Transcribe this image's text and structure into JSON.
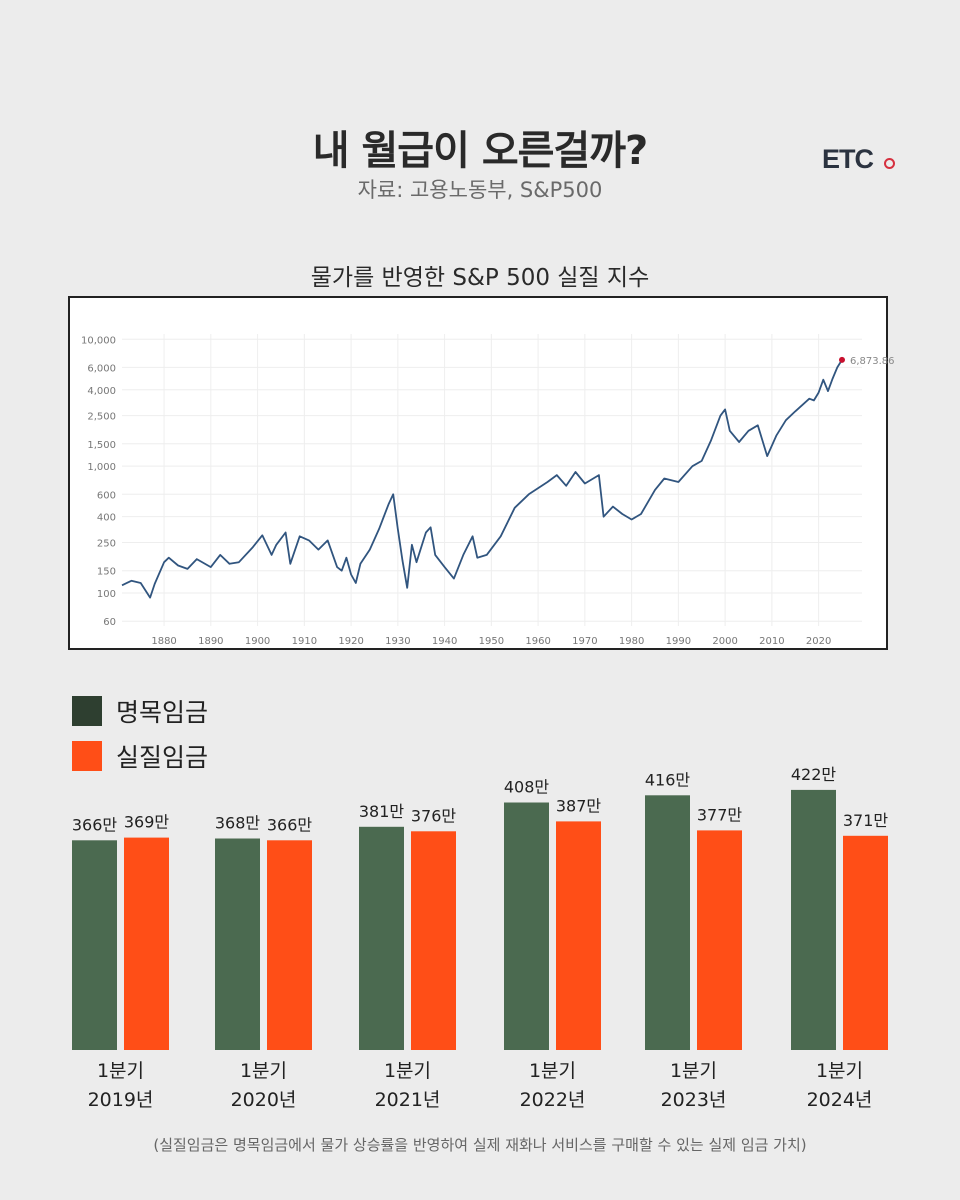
{
  "header": {
    "title": "내 월급이 오른걸까?",
    "source": "자료: 고용노동부, S&P500",
    "brand": "ETC"
  },
  "colors": {
    "nominal": "#4b6a50",
    "real": "#ff4e17",
    "legend_nominal": "#2e3f30",
    "line": "#31557f",
    "marker": "#c8102e"
  },
  "chart_data": [
    {
      "type": "line",
      "title": "물가를 반영한 S&P 500 실질 지수",
      "yscale": "log",
      "ylim": [
        55,
        11000
      ],
      "xlim": [
        1871,
        2025
      ],
      "yticks": [
        60,
        100,
        150,
        250,
        400,
        600,
        1000,
        1500,
        2500,
        4000,
        6000,
        10000
      ],
      "ytick_labels": [
        "60",
        "100",
        "150",
        "250",
        "400",
        "600",
        "1,000",
        "1,500",
        "2,500",
        "4,000",
        "6,000",
        "10,000"
      ],
      "xticks": [
        1880,
        1890,
        1900,
        1910,
        1920,
        1930,
        1940,
        1950,
        1960,
        1970,
        1980,
        1990,
        2000,
        2010,
        2020
      ],
      "last_value_label": "6,873.86",
      "series": [
        {
          "name": "S&P 500 real index",
          "x": [
            1871,
            1873,
            1875,
            1877,
            1878,
            1880,
            1881,
            1883,
            1885,
            1887,
            1890,
            1892,
            1894,
            1896,
            1899,
            1901,
            1903,
            1904,
            1906,
            1907,
            1909,
            1911,
            1913,
            1915,
            1917,
            1918,
            1919,
            1920,
            1921,
            1922,
            1924,
            1926,
            1928,
            1929,
            1930,
            1931,
            1932,
            1933,
            1934,
            1936,
            1937,
            1938,
            1940,
            1942,
            1944,
            1946,
            1947,
            1949,
            1952,
            1955,
            1958,
            1962,
            1964,
            1966,
            1968,
            1970,
            1973,
            1974,
            1976,
            1978,
            1980,
            1982,
            1985,
            1987,
            1990,
            1993,
            1995,
            1997,
            1999,
            2000,
            2001,
            2003,
            2005,
            2007,
            2009,
            2011,
            2013,
            2015,
            2018,
            2019,
            2020,
            2021,
            2022,
            2023,
            2024,
            2025
          ],
          "values": [
            115,
            125,
            120,
            92,
            118,
            175,
            190,
            165,
            155,
            185,
            160,
            200,
            170,
            175,
            230,
            285,
            200,
            240,
            300,
            170,
            280,
            260,
            220,
            260,
            160,
            150,
            190,
            140,
            120,
            170,
            220,
            320,
            500,
            600,
            320,
            180,
            110,
            240,
            175,
            300,
            330,
            200,
            160,
            130,
            200,
            280,
            190,
            200,
            280,
            470,
            600,
            750,
            850,
            700,
            900,
            730,
            850,
            400,
            480,
            420,
            380,
            420,
            650,
            800,
            750,
            1000,
            1100,
            1600,
            2500,
            2800,
            1900,
            1550,
            1900,
            2100,
            1200,
            1750,
            2300,
            2700,
            3400,
            3300,
            3800,
            4800,
            3900,
            4900,
            6000,
            6873.86
          ]
        }
      ]
    },
    {
      "type": "bar",
      "categories": [
        "1분기\n2019년",
        "1분기\n2020년",
        "1분기\n2021년",
        "1분기\n2022년",
        "1분기\n2023년",
        "1분기\n2024년"
      ],
      "category_lines": [
        [
          "1분기",
          "2019년"
        ],
        [
          "1분기",
          "2020년"
        ],
        [
          "1분기",
          "2021년"
        ],
        [
          "1분기",
          "2022년"
        ],
        [
          "1분기",
          "2023년"
        ],
        [
          "1분기",
          "2024년"
        ]
      ],
      "unit": "만",
      "series": [
        {
          "name": "명목임금",
          "values": [
            366,
            368,
            381,
            408,
            416,
            422
          ],
          "labels": [
            "366만",
            "368만",
            "381만",
            "408만",
            "416만",
            "422만"
          ]
        },
        {
          "name": "실질임금",
          "values": [
            369,
            366,
            376,
            387,
            377,
            371
          ],
          "labels": [
            "369만",
            "366만",
            "376만",
            "387만",
            "377만",
            "371만"
          ]
        }
      ],
      "legend": [
        "명목임금",
        "실질임금"
      ],
      "legend_position": "top-left"
    }
  ],
  "footnote": "(실질임금은 명목임금에서 물가 상승률을 반영하여 실제 재화나 서비스를 구매할 수 있는 실제 임금 가치)"
}
